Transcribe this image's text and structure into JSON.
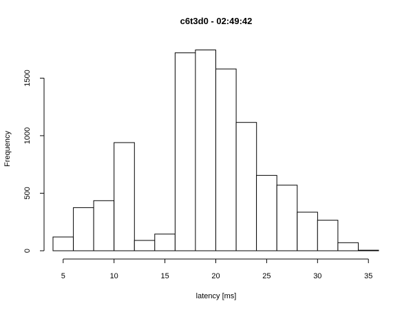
{
  "chart_data": {
    "type": "bar",
    "title": "c6t3d0 - 02:49:42",
    "xlabel": "latency [ms]",
    "ylabel": "Frequency",
    "bin_edges": [
      4,
      6,
      8,
      10,
      12,
      14,
      16,
      18,
      20,
      22,
      24,
      26,
      28,
      30,
      32,
      34,
      36
    ],
    "values": [
      120,
      375,
      435,
      940,
      90,
      145,
      1720,
      1745,
      1580,
      1115,
      655,
      570,
      335,
      265,
      70,
      5
    ],
    "xlim": [
      4,
      36
    ],
    "ylim": [
      0,
      1760
    ],
    "xticks": [
      5,
      10,
      15,
      20,
      25,
      30,
      35
    ],
    "yticks": [
      0,
      500,
      1000,
      1500
    ],
    "grid": false,
    "colors": {
      "bar_fill": "#ffffff",
      "bar_stroke": "#000000",
      "background": "#ffffff"
    }
  }
}
